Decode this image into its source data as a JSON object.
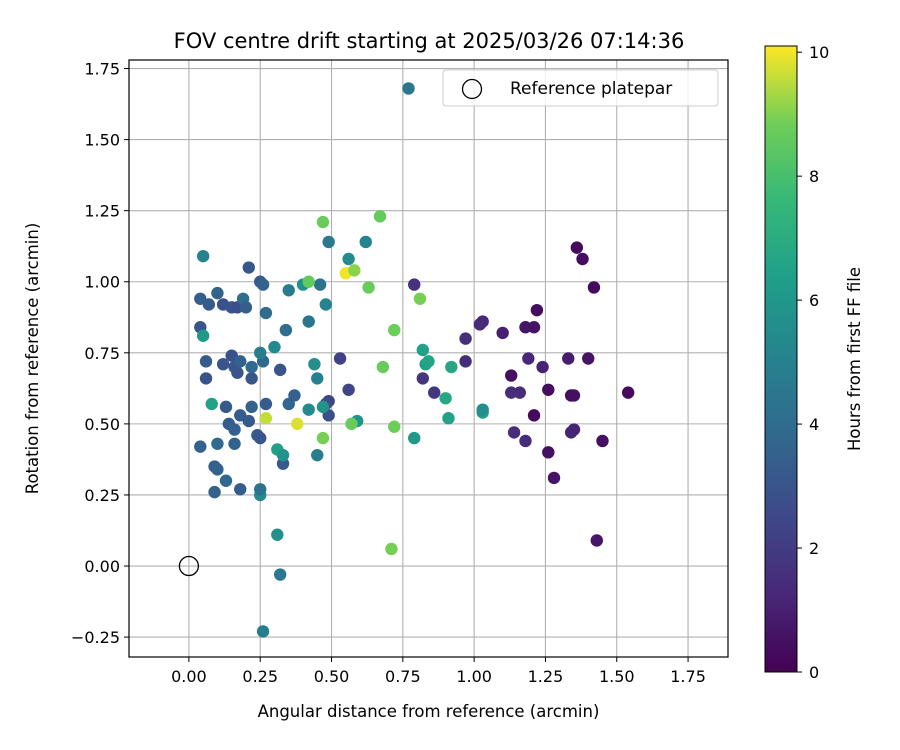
{
  "chart_data": {
    "type": "scatter",
    "title": "FOV centre drift starting at 2025/03/26 07:14:36",
    "xlabel": "Angular distance from reference (arcmin)",
    "ylabel": "Rotation from reference (arcmin)",
    "xlim": [
      -0.21,
      1.89
    ],
    "ylim": [
      -0.32,
      1.78
    ],
    "xticks": [
      0.0,
      0.25,
      0.5,
      0.75,
      1.0,
      1.25,
      1.5,
      1.75
    ],
    "xtick_labels": [
      "0.00",
      "0.25",
      "0.50",
      "0.75",
      "1.00",
      "1.25",
      "1.50",
      "1.75"
    ],
    "yticks": [
      -0.25,
      0.0,
      0.25,
      0.5,
      0.75,
      1.0,
      1.25,
      1.5,
      1.75
    ],
    "ytick_labels": [
      "−0.25",
      "0.00",
      "0.25",
      "0.50",
      "0.75",
      "1.00",
      "1.25",
      "1.50",
      "1.75"
    ],
    "grid": true,
    "legend": {
      "placement": "top-right",
      "entries": [
        "Reference platepar"
      ]
    },
    "reference_point": {
      "x": 0.0,
      "y": 0.0
    },
    "colorbar": {
      "label": "Hours from first FF file",
      "colormap": "viridis",
      "range": [
        0,
        10.1
      ],
      "ticks": [
        0,
        2,
        4,
        6,
        8,
        10
      ],
      "tick_labels": [
        "0",
        "2",
        "4",
        "6",
        "8",
        "10"
      ]
    },
    "points": [
      {
        "x": 1.36,
        "y": 1.12,
        "c": 0.3
      },
      {
        "x": 1.38,
        "y": 1.08,
        "c": 0.4
      },
      {
        "x": 1.42,
        "y": 0.98,
        "c": 0.3
      },
      {
        "x": 1.22,
        "y": 0.9,
        "c": 0.4
      },
      {
        "x": 1.03,
        "y": 0.86,
        "c": 1.3
      },
      {
        "x": 1.02,
        "y": 0.85,
        "c": 1.4
      },
      {
        "x": 1.1,
        "y": 0.82,
        "c": 1.0
      },
      {
        "x": 1.18,
        "y": 0.84,
        "c": 0.7
      },
      {
        "x": 1.21,
        "y": 0.84,
        "c": 0.6
      },
      {
        "x": 0.97,
        "y": 0.8,
        "c": 1.5
      },
      {
        "x": 0.79,
        "y": 0.99,
        "c": 1.6
      },
      {
        "x": 1.19,
        "y": 0.73,
        "c": 1.3
      },
      {
        "x": 1.24,
        "y": 0.7,
        "c": 1.1
      },
      {
        "x": 1.33,
        "y": 0.73,
        "c": 0.9
      },
      {
        "x": 1.4,
        "y": 0.73,
        "c": 0.6
      },
      {
        "x": 0.97,
        "y": 0.72,
        "c": 1.5
      },
      {
        "x": 1.13,
        "y": 0.67,
        "c": 0.5
      },
      {
        "x": 1.26,
        "y": 0.62,
        "c": 0.4
      },
      {
        "x": 1.13,
        "y": 0.61,
        "c": 1.5
      },
      {
        "x": 1.16,
        "y": 0.61,
        "c": 1.4
      },
      {
        "x": 1.34,
        "y": 0.6,
        "c": 0.4
      },
      {
        "x": 1.35,
        "y": 0.6,
        "c": 0.5
      },
      {
        "x": 1.54,
        "y": 0.61,
        "c": 0.3
      },
      {
        "x": 1.21,
        "y": 0.53,
        "c": 0.3
      },
      {
        "x": 1.14,
        "y": 0.47,
        "c": 1.5
      },
      {
        "x": 1.18,
        "y": 0.44,
        "c": 1.4
      },
      {
        "x": 1.34,
        "y": 0.47,
        "c": 1.2
      },
      {
        "x": 1.35,
        "y": 0.48,
        "c": 1.1
      },
      {
        "x": 1.45,
        "y": 0.44,
        "c": 0.5
      },
      {
        "x": 1.26,
        "y": 0.4,
        "c": 0.5
      },
      {
        "x": 1.28,
        "y": 0.31,
        "c": 0.6
      },
      {
        "x": 1.43,
        "y": 0.09,
        "c": 0.7
      },
      {
        "x": 0.82,
        "y": 0.66,
        "c": 1.8
      },
      {
        "x": 0.86,
        "y": 0.61,
        "c": 1.8
      },
      {
        "x": 0.53,
        "y": 0.73,
        "c": 2.2
      },
      {
        "x": 0.56,
        "y": 0.62,
        "c": 2.4
      },
      {
        "x": 0.49,
        "y": 0.58,
        "c": 2.3
      },
      {
        "x": 0.48,
        "y": 0.57,
        "c": 2.6
      },
      {
        "x": 0.49,
        "y": 0.53,
        "c": 2.8
      },
      {
        "x": 0.04,
        "y": 0.94,
        "c": 3.4
      },
      {
        "x": 0.07,
        "y": 0.92,
        "c": 3.3
      },
      {
        "x": 0.1,
        "y": 0.96,
        "c": 3.6
      },
      {
        "x": 0.12,
        "y": 0.92,
        "c": 2.9
      },
      {
        "x": 0.15,
        "y": 0.91,
        "c": 3.0
      },
      {
        "x": 0.17,
        "y": 0.91,
        "c": 2.8
      },
      {
        "x": 0.19,
        "y": 0.94,
        "c": 4.2
      },
      {
        "x": 0.2,
        "y": 0.91,
        "c": 3.4
      },
      {
        "x": 0.21,
        "y": 1.05,
        "c": 3.1
      },
      {
        "x": 0.25,
        "y": 1.0,
        "c": 3.2
      },
      {
        "x": 0.26,
        "y": 0.99,
        "c": 3.5
      },
      {
        "x": 0.27,
        "y": 0.89,
        "c": 4.0
      },
      {
        "x": 0.04,
        "y": 0.84,
        "c": 3.0
      },
      {
        "x": 0.06,
        "y": 0.72,
        "c": 3.3
      },
      {
        "x": 0.06,
        "y": 0.66,
        "c": 2.9
      },
      {
        "x": 0.12,
        "y": 0.71,
        "c": 3.0
      },
      {
        "x": 0.15,
        "y": 0.74,
        "c": 2.9
      },
      {
        "x": 0.16,
        "y": 0.7,
        "c": 3.1
      },
      {
        "x": 0.17,
        "y": 0.68,
        "c": 3.0
      },
      {
        "x": 0.18,
        "y": 0.72,
        "c": 3.5
      },
      {
        "x": 0.22,
        "y": 0.7,
        "c": 3.9
      },
      {
        "x": 0.22,
        "y": 0.66,
        "c": 3.0
      },
      {
        "x": 0.26,
        "y": 0.72,
        "c": 3.8
      },
      {
        "x": 0.13,
        "y": 0.56,
        "c": 3.2
      },
      {
        "x": 0.18,
        "y": 0.53,
        "c": 3.4
      },
      {
        "x": 0.21,
        "y": 0.51,
        "c": 3.2
      },
      {
        "x": 0.22,
        "y": 0.56,
        "c": 3.5
      },
      {
        "x": 0.14,
        "y": 0.5,
        "c": 3.3
      },
      {
        "x": 0.16,
        "y": 0.48,
        "c": 3.5
      },
      {
        "x": 0.16,
        "y": 0.43,
        "c": 3.6
      },
      {
        "x": 0.24,
        "y": 0.46,
        "c": 3.2
      },
      {
        "x": 0.25,
        "y": 0.45,
        "c": 3.0
      },
      {
        "x": 0.04,
        "y": 0.42,
        "c": 3.5
      },
      {
        "x": 0.09,
        "y": 0.35,
        "c": 3.4
      },
      {
        "x": 0.1,
        "y": 0.43,
        "c": 3.9
      },
      {
        "x": 0.1,
        "y": 0.34,
        "c": 3.6
      },
      {
        "x": 0.13,
        "y": 0.3,
        "c": 3.8
      },
      {
        "x": 0.18,
        "y": 0.27,
        "c": 3.4
      },
      {
        "x": 0.09,
        "y": 0.26,
        "c": 3.6
      },
      {
        "x": 0.27,
        "y": 0.57,
        "c": 3.3
      },
      {
        "x": 0.32,
        "y": 0.69,
        "c": 3.0
      },
      {
        "x": 0.35,
        "y": 0.57,
        "c": 3.7
      },
      {
        "x": 0.37,
        "y": 0.6,
        "c": 3.5
      },
      {
        "x": 0.33,
        "y": 0.36,
        "c": 3.2
      },
      {
        "x": 0.34,
        "y": 0.83,
        "c": 4.1
      },
      {
        "x": 0.35,
        "y": 0.97,
        "c": 4.7
      },
      {
        "x": 0.4,
        "y": 0.99,
        "c": 5.7
      },
      {
        "x": 0.46,
        "y": 0.99,
        "c": 4.3
      },
      {
        "x": 0.42,
        "y": 0.86,
        "c": 4.4
      },
      {
        "x": 0.48,
        "y": 0.92,
        "c": 5.1
      },
      {
        "x": 0.49,
        "y": 1.14,
        "c": 4.6
      },
      {
        "x": 0.56,
        "y": 1.08,
        "c": 5.5
      },
      {
        "x": 0.62,
        "y": 1.14,
        "c": 5.1
      },
      {
        "x": 0.44,
        "y": 0.71,
        "c": 5.6
      },
      {
        "x": 0.45,
        "y": 0.66,
        "c": 5.0
      },
      {
        "x": 0.42,
        "y": 0.55,
        "c": 5.4
      },
      {
        "x": 0.47,
        "y": 0.56,
        "c": 5.8
      },
      {
        "x": 0.45,
        "y": 0.39,
        "c": 4.9
      },
      {
        "x": 0.59,
        "y": 0.51,
        "c": 5.9
      },
      {
        "x": 0.3,
        "y": 0.77,
        "c": 5.4
      },
      {
        "x": 0.25,
        "y": 0.75,
        "c": 4.9
      },
      {
        "x": 0.05,
        "y": 1.09,
        "c": 5.1
      },
      {
        "x": 0.05,
        "y": 0.81,
        "c": 6.0
      },
      {
        "x": 0.08,
        "y": 0.57,
        "c": 6.5
      },
      {
        "x": 0.25,
        "y": 0.25,
        "c": 5.4
      },
      {
        "x": 0.25,
        "y": 0.27,
        "c": 4.3
      },
      {
        "x": 0.31,
        "y": 0.41,
        "c": 6.4
      },
      {
        "x": 0.33,
        "y": 0.39,
        "c": 5.8
      },
      {
        "x": 0.31,
        "y": 0.11,
        "c": 5.7
      },
      {
        "x": 0.32,
        "y": -0.03,
        "c": 4.6
      },
      {
        "x": 0.26,
        "y": -0.23,
        "c": 4.8
      },
      {
        "x": 0.77,
        "y": 1.68,
        "c": 4.5
      },
      {
        "x": 0.82,
        "y": 0.76,
        "c": 6.5
      },
      {
        "x": 0.83,
        "y": 0.71,
        "c": 6.4
      },
      {
        "x": 0.84,
        "y": 0.72,
        "c": 6.6
      },
      {
        "x": 0.79,
        "y": 0.45,
        "c": 6.1
      },
      {
        "x": 0.9,
        "y": 0.59,
        "c": 6.8
      },
      {
        "x": 0.92,
        "y": 0.7,
        "c": 6.7
      },
      {
        "x": 0.91,
        "y": 0.52,
        "c": 6.5
      },
      {
        "x": 1.03,
        "y": 0.54,
        "c": 6.3
      },
      {
        "x": 1.03,
        "y": 0.55,
        "c": 5.6
      },
      {
        "x": 0.42,
        "y": 1.0,
        "c": 8.6
      },
      {
        "x": 0.47,
        "y": 1.21,
        "c": 8.7
      },
      {
        "x": 0.55,
        "y": 1.03,
        "c": 10.0
      },
      {
        "x": 0.58,
        "y": 1.04,
        "c": 9.1
      },
      {
        "x": 0.63,
        "y": 0.98,
        "c": 8.7
      },
      {
        "x": 0.67,
        "y": 1.23,
        "c": 8.6
      },
      {
        "x": 0.72,
        "y": 0.83,
        "c": 8.8
      },
      {
        "x": 0.81,
        "y": 0.94,
        "c": 8.9
      },
      {
        "x": 0.68,
        "y": 0.7,
        "c": 8.7
      },
      {
        "x": 0.72,
        "y": 0.49,
        "c": 8.8
      },
      {
        "x": 0.57,
        "y": 0.5,
        "c": 8.7
      },
      {
        "x": 0.47,
        "y": 0.45,
        "c": 8.9
      },
      {
        "x": 0.38,
        "y": 0.5,
        "c": 9.8
      },
      {
        "x": 0.27,
        "y": 0.52,
        "c": 9.6
      },
      {
        "x": 0.71,
        "y": 0.06,
        "c": 8.9
      }
    ]
  }
}
